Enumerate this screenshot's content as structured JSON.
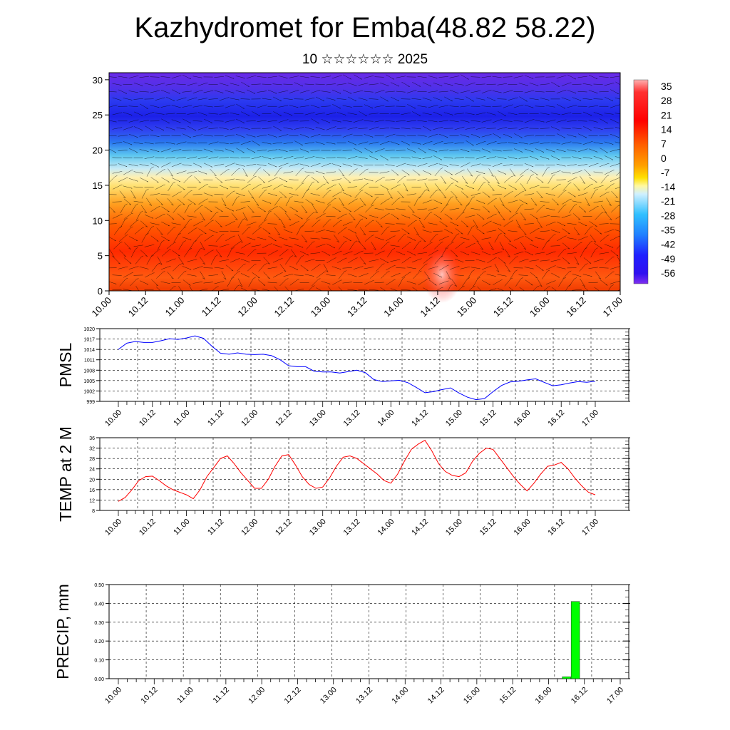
{
  "header": {
    "title": "Kazhydromet for Emba(48.82 58.22)",
    "subtitle": "10 ☆☆☆☆☆☆ 2025"
  },
  "colors": {
    "pmsl_line": "#0000ff",
    "temp_line": "#ff0000",
    "precip_bar": "#00ff00"
  },
  "chart_data": [
    {
      "type": "heatmap",
      "name": "cross-section",
      "x_tick_labels": [
        "10.00",
        "10.12",
        "11.00",
        "11.12",
        "12.00",
        "12.12",
        "13.00",
        "13.12",
        "14.00",
        "14.12",
        "15.00",
        "15.12",
        "16.00",
        "16.12",
        "17.00"
      ],
      "y_ticks": [
        0,
        5,
        10,
        15,
        20,
        25,
        30
      ],
      "ylim": [
        0,
        31
      ],
      "colorbar_labels": [
        "35",
        "28",
        "21",
        "14",
        "7",
        "0",
        "-7",
        "-14",
        "-21",
        "-28",
        "-35",
        "-42",
        "-49",
        "-56"
      ],
      "overlay": "wind barbs"
    },
    {
      "type": "line",
      "ylabel": "PMSL",
      "ylim": [
        999,
        1020
      ],
      "y_ticks": [
        999,
        1002,
        1005,
        1008,
        1011,
        1014,
        1017,
        1020
      ],
      "x_tick_labels": [
        "10.00",
        "10.12",
        "11.00",
        "11.12",
        "12.00",
        "12.12",
        "13.00",
        "13.12",
        "14.00",
        "14.12",
        "15.00",
        "15.12",
        "16.00",
        "16.12",
        "17.00"
      ],
      "values": [
        1014.0,
        1015.8,
        1016.3,
        1016.0,
        1016.0,
        1016.5,
        1017.1,
        1016.9,
        1017.3,
        1017.9,
        1017.2,
        1014.9,
        1012.9,
        1012.6,
        1013.0,
        1012.6,
        1012.5,
        1012.6,
        1012.2,
        1011.0,
        1009.3,
        1009.0,
        1009.0,
        1007.7,
        1007.5,
        1007.5,
        1007.2,
        1007.6,
        1008.0,
        1007.3,
        1005.3,
        1004.7,
        1004.9,
        1005.1,
        1004.4,
        1003.0,
        1001.5,
        1001.8,
        1002.4,
        1002.9,
        1001.4,
        1000.2,
        999.5,
        999.8,
        1001.8,
        1003.6,
        1004.6,
        1004.8,
        1005.2,
        1005.5,
        1004.5,
        1003.5,
        1003.8,
        1004.3,
        1004.7,
        1004.5,
        1004.8
      ]
    },
    {
      "type": "line",
      "ylabel": "TEMP at 2 M",
      "ylim": [
        8,
        36
      ],
      "y_ticks": [
        8,
        12,
        16,
        20,
        24,
        28,
        32,
        36
      ],
      "x_tick_labels": [
        "10.00",
        "10.12",
        "11.00",
        "11.12",
        "12.00",
        "12.12",
        "13.00",
        "13.12",
        "14.00",
        "14.12",
        "15.00",
        "15.12",
        "16.00",
        "16.12",
        "17.00"
      ],
      "values": [
        11.5,
        13.0,
        16.0,
        19.5,
        21.0,
        21.2,
        19.5,
        17.5,
        16.0,
        15.0,
        14.0,
        12.5,
        16.0,
        21.0,
        24.5,
        28.0,
        29.0,
        26.0,
        22.5,
        19.5,
        16.5,
        16.5,
        20.0,
        25.0,
        29.0,
        29.5,
        25.5,
        21.0,
        18.0,
        16.5,
        17.0,
        20.5,
        25.0,
        28.5,
        29.0,
        28.0,
        26.0,
        24.0,
        22.0,
        19.5,
        18.5,
        22.0,
        27.0,
        31.5,
        33.5,
        35.0,
        31.0,
        26.0,
        23.0,
        21.5,
        21.0,
        22.5,
        27.0,
        30.0,
        32.0,
        31.5,
        28.0,
        24.5,
        21.0,
        18.0,
        15.5,
        18.5,
        22.0,
        25.0,
        25.5,
        26.5,
        24.0,
        20.5,
        17.5,
        15.0,
        14.0
      ]
    },
    {
      "type": "bar",
      "ylabel": "PRECIP, mm",
      "ylim": [
        0,
        0.5
      ],
      "y_tick_labels": [
        "0.00",
        "0.10",
        "0.20",
        "0.30",
        "0.40",
        "0.50"
      ],
      "x_tick_labels": [
        "10.00",
        "10.12",
        "11.00",
        "11.12",
        "12.00",
        "12.12",
        "13.00",
        "13.12",
        "14.00",
        "14.12",
        "15.00",
        "15.12",
        "16.00",
        "16.12",
        "17.00"
      ],
      "bars": [
        {
          "x": "16.06",
          "value": 0.01
        },
        {
          "x": "16.09",
          "value": 0.41
        }
      ]
    }
  ]
}
